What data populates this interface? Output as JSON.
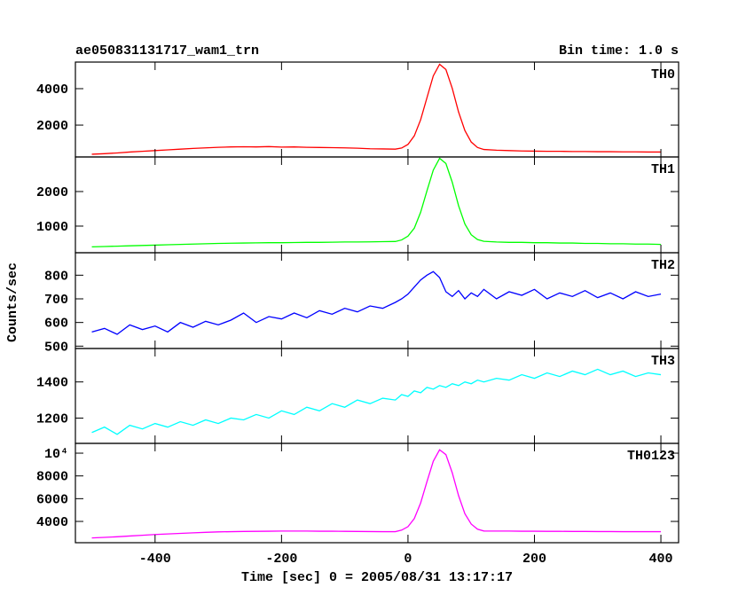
{
  "chart_data": {
    "type": "line",
    "title": "ae050831131717_wam1_trn",
    "subtitle": "Bin time: 1.0 s",
    "x_label": "Time [sec] 0 = 2005/08/31 13:17:17",
    "y_label": "Counts/sec",
    "xlim": [
      -526,
      428
    ],
    "xticks": [
      -400,
      -200,
      0,
      200,
      400
    ],
    "x": [
      -500,
      -480,
      -460,
      -440,
      -420,
      -400,
      -380,
      -360,
      -340,
      -320,
      -300,
      -280,
      -260,
      -240,
      -220,
      -200,
      -180,
      -160,
      -140,
      -120,
      -100,
      -80,
      -60,
      -40,
      -20,
      -10,
      0,
      10,
      20,
      30,
      40,
      50,
      60,
      70,
      80,
      90,
      100,
      110,
      120,
      140,
      160,
      180,
      200,
      220,
      240,
      260,
      280,
      300,
      320,
      340,
      360,
      380,
      400
    ],
    "series": [
      {
        "name": "TH0",
        "color": "#ff0000",
        "ylim": [
          250,
          5460
        ],
        "yticks": [
          2000,
          4000
        ],
        "values": [
          400,
          430,
          470,
          520,
          560,
          600,
          640,
          680,
          720,
          750,
          780,
          800,
          810,
          800,
          820,
          790,
          800,
          780,
          770,
          760,
          750,
          730,
          700,
          690,
          680,
          740,
          940,
          1410,
          2290,
          3500,
          4700,
          5340,
          5050,
          4020,
          2720,
          1700,
          1070,
          770,
          660,
          620,
          600,
          580,
          570,
          560,
          560,
          550,
          550,
          540,
          540,
          530,
          530,
          520,
          520
        ]
      },
      {
        "name": "TH1",
        "color": "#00ff00",
        "ylim": [
          230,
          3000
        ],
        "yticks": [
          1000,
          2000
        ],
        "values": [
          400,
          410,
          420,
          430,
          440,
          450,
          460,
          470,
          480,
          490,
          500,
          505,
          510,
          515,
          520,
          520,
          525,
          530,
          530,
          535,
          540,
          540,
          545,
          550,
          555,
          600,
          710,
          940,
          1400,
          2020,
          2620,
          2960,
          2810,
          2270,
          1590,
          1060,
          750,
          610,
          560,
          540,
          530,
          530,
          520,
          520,
          510,
          510,
          500,
          500,
          490,
          490,
          480,
          480,
          470
        ]
      },
      {
        "name": "TH2",
        "color": "#0000ff",
        "ylim": [
          490,
          895
        ],
        "yticks": [
          500,
          600,
          700,
          800
        ],
        "values": [
          560,
          575,
          550,
          590,
          570,
          585,
          560,
          600,
          580,
          605,
          590,
          610,
          640,
          600,
          625,
          615,
          640,
          620,
          650,
          635,
          660,
          645,
          670,
          660,
          685,
          700,
          720,
          750,
          780,
          800,
          815,
          790,
          730,
          710,
          735,
          700,
          725,
          710,
          740,
          700,
          730,
          715,
          740,
          700,
          725,
          710,
          735,
          705,
          725,
          700,
          730,
          710,
          720
        ]
      },
      {
        "name": "TH3",
        "color": "#00ffff",
        "ylim": [
          1060,
          1585
        ],
        "yticks": [
          1200,
          1400
        ],
        "values": [
          1120,
          1150,
          1110,
          1160,
          1140,
          1170,
          1150,
          1180,
          1160,
          1190,
          1170,
          1200,
          1190,
          1220,
          1200,
          1240,
          1220,
          1260,
          1240,
          1280,
          1260,
          1300,
          1280,
          1310,
          1300,
          1330,
          1320,
          1350,
          1340,
          1370,
          1360,
          1380,
          1370,
          1390,
          1380,
          1400,
          1390,
          1410,
          1400,
          1420,
          1410,
          1440,
          1420,
          1450,
          1430,
          1460,
          1440,
          1470,
          1440,
          1460,
          1430,
          1450,
          1440
        ]
      },
      {
        "name": "TH0123",
        "color": "#ff00ff",
        "ylim": [
          2130,
          10860
        ],
        "yticks": [
          4000,
          6000,
          8000,
          {
            "value": 10000,
            "label": "10⁴"
          }
        ],
        "values": [
          2550,
          2600,
          2650,
          2720,
          2780,
          2850,
          2900,
          2950,
          3000,
          3040,
          3080,
          3100,
          3120,
          3130,
          3140,
          3150,
          3150,
          3150,
          3140,
          3140,
          3130,
          3120,
          3110,
          3100,
          3100,
          3240,
          3540,
          4250,
          5620,
          7490,
          9290,
          10300,
          9870,
          8280,
          6270,
          4680,
          3770,
          3320,
          3160,
          3150,
          3150,
          3140,
          3140,
          3130,
          3130,
          3120,
          3120,
          3110,
          3110,
          3100,
          3100,
          3100,
          3100
        ]
      }
    ]
  }
}
